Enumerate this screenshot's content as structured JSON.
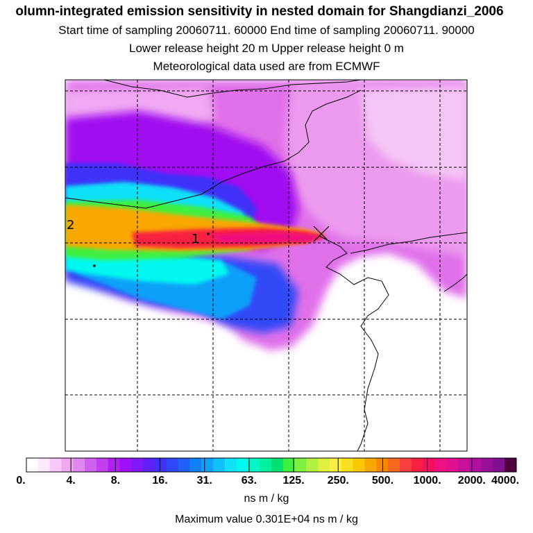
{
  "header": {
    "title": "olumn-integrated emission sensitivity in nested domain for Shangdianzi_2006",
    "sampling_line": "Start time of sampling 20060711. 60000     End time of sampling 20060711. 90000",
    "release_line": "Lower release height   20 m          Upper release height    0 m",
    "met_line": "Meteorological data used are from ECMWF"
  },
  "map": {
    "labels": {
      "marker_1": "1",
      "marker_2": "2"
    },
    "receptor_symbol": "x-cross-marker",
    "grid": "dashed"
  },
  "legend": {
    "ticks": [
      "0.",
      "4.",
      "8.",
      "16.",
      "31.",
      "63.",
      "125.",
      "250.",
      "500.",
      "1000.",
      "2000.",
      "4000."
    ],
    "colors": [
      "#ffffff",
      "#fde8fd",
      "#f8c8f8",
      "#f0a8f0",
      "#e088ee",
      "#d060ee",
      "#c040f0",
      "#b020f0",
      "#a010f8",
      "#8018f8",
      "#6020f8",
      "#4030f8",
      "#3048f8",
      "#2060f8",
      "#1080f8",
      "#10a0f8",
      "#10c0f8",
      "#10e0f8",
      "#00f8f0",
      "#00f8c8",
      "#00f0a0",
      "#00e070",
      "#40f040",
      "#80f040",
      "#b0f040",
      "#e0f040",
      "#f8f040",
      "#f8e020",
      "#f8c800",
      "#f8a800",
      "#f88800",
      "#f86820",
      "#f84040",
      "#f82040",
      "#f81060",
      "#f01080",
      "#e01090",
      "#c81098",
      "#b010a0",
      "#981098",
      "#801090",
      "#500040"
    ],
    "units": "ns m / kg",
    "max_value": "Maximum value  0.301E+04 ns m / kg"
  }
}
